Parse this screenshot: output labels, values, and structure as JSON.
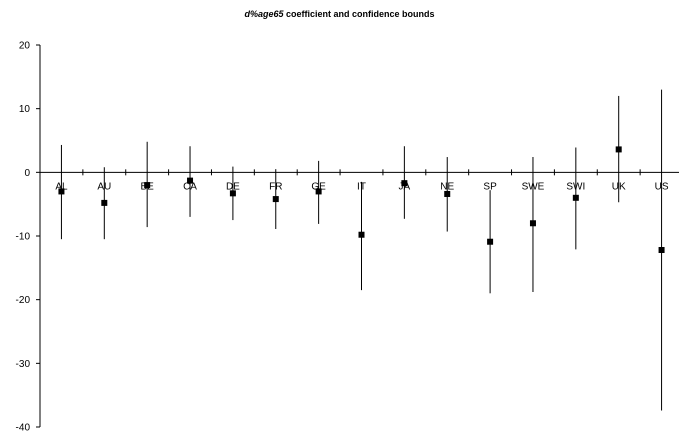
{
  "chart_data": {
    "type": "scatter",
    "title_prefix": "d%age65",
    "title_suffix": " coefficient and confidence bounds",
    "xlabel": "",
    "ylabel": "",
    "ylim": [
      -40,
      20
    ],
    "yticks": [
      20,
      10,
      0,
      -10,
      -20,
      -30,
      -40
    ],
    "grid": false,
    "legend": "none",
    "categories": [
      "AL",
      "AU",
      "BE",
      "CA",
      "DE",
      "FR",
      "GE",
      "IT",
      "JA",
      "NE",
      "SP",
      "SWE",
      "SWI",
      "UK",
      "US"
    ],
    "series": [
      {
        "values": [
          -3.0,
          -4.8,
          -2.0,
          -1.3,
          -3.3,
          -4.2,
          -3.0,
          -9.8,
          -1.7,
          -3.4,
          -10.9,
          -8.0,
          -4.0,
          3.6,
          -12.2
        ]
      }
    ],
    "lower": [
      -10.5,
      -10.5,
      -8.6,
      -7.0,
      -7.5,
      -8.9,
      -8.1,
      -18.5,
      -7.3,
      -9.3,
      -19.0,
      -18.8,
      -12.1,
      -4.7,
      -37.4
    ],
    "upper": [
      4.3,
      0.8,
      4.8,
      4.1,
      0.9,
      0.5,
      1.8,
      -1.5,
      4.1,
      2.4,
      -2.8,
      2.4,
      3.9,
      12.0,
      13.0
    ],
    "colors": {
      "axis": "#000000",
      "marker": "#000000",
      "bar": "#000000"
    }
  }
}
